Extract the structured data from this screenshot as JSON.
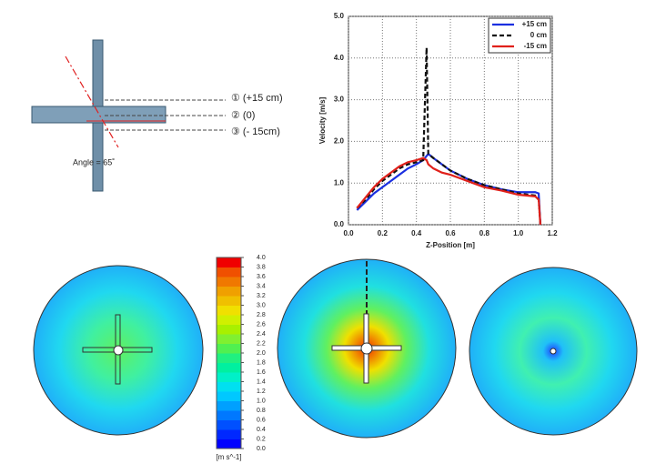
{
  "diagram": {
    "levels": [
      "① (+15 cm)",
      "② (0)",
      "③ (- 15cm)"
    ],
    "angle_label": "Angle = 65˚"
  },
  "chart_data": [
    {
      "type": "line",
      "xlabel": "Z-Position [m]",
      "ylabel": "Velocity [m/s]",
      "xlim": [
        0,
        1.2
      ],
      "ylim": [
        0,
        5
      ],
      "xticks": [
        {
          "value": 0,
          "label": "0.0"
        },
        0.2,
        0.4,
        0.6,
        0.8,
        {
          "value": 1,
          "label": "1.0"
        },
        1.2
      ],
      "yticks": [
        {
          "value": 0,
          "label": "0.0"
        },
        {
          "value": 1,
          "label": "1.0"
        },
        {
          "value": 2,
          "label": "2.0"
        },
        {
          "value": 3,
          "label": "3.0"
        },
        {
          "value": 4,
          "label": "4.0"
        },
        {
          "value": 5,
          "label": "5.0"
        }
      ],
      "grid": true,
      "legend": "upper right",
      "x": [
        0.05,
        0.1,
        0.15,
        0.2,
        0.25,
        0.3,
        0.35,
        0.4,
        0.44,
        0.46,
        0.47,
        0.5,
        0.55,
        0.6,
        0.7,
        0.8,
        0.9,
        1.0,
        1.1,
        1.12,
        1.13
      ],
      "series": [
        {
          "name": "+15 cm",
          "color": "#1a2fe0",
          "style": "solid",
          "values": [
            0.35,
            0.55,
            0.75,
            0.9,
            1.05,
            1.2,
            1.35,
            1.45,
            1.55,
            1.65,
            1.7,
            1.6,
            1.45,
            1.3,
            1.1,
            0.95,
            0.85,
            0.78,
            0.78,
            0.75,
            0.0
          ]
        },
        {
          "name": "0 cm",
          "color": "#111111",
          "style": "dashed",
          "values": [
            0.4,
            0.6,
            0.85,
            1.05,
            1.2,
            1.35,
            1.45,
            1.5,
            1.55,
            4.25,
            1.7,
            1.6,
            1.45,
            1.3,
            1.1,
            0.95,
            0.85,
            0.75,
            0.7,
            0.6,
            0.0
          ]
        },
        {
          "name": "-15 cm",
          "color": "#e0201a",
          "style": "solid",
          "values": [
            0.4,
            0.65,
            0.9,
            1.1,
            1.25,
            1.4,
            1.5,
            1.55,
            1.6,
            1.55,
            1.45,
            1.35,
            1.25,
            1.2,
            1.05,
            0.9,
            0.82,
            0.72,
            0.68,
            0.6,
            0.0
          ]
        }
      ]
    },
    {
      "type": "colorbar",
      "unit": "[m s^-1]",
      "lim": [
        0,
        4
      ],
      "ticks": [
        {
          "value": 0,
          "label": "0.0"
        },
        0.2,
        0.4,
        0.6,
        0.8,
        {
          "value": 1,
          "label": "1.0"
        },
        1.2,
        1.4,
        1.6,
        1.8,
        {
          "value": 2,
          "label": "2.0"
        },
        2.2,
        2.4,
        2.6,
        2.8,
        {
          "value": 3,
          "label": "3.0"
        },
        3.2,
        3.4,
        3.6,
        3.8,
        {
          "value": 4,
          "label": "4.0"
        }
      ],
      "colors": [
        "#0000ff",
        "#0028ff",
        "#0050ff",
        "#0078ff",
        "#00a0ff",
        "#00c8ff",
        "#00e0f0",
        "#00f0c8",
        "#00f0a0",
        "#20f080",
        "#50f050",
        "#80f030",
        "#a8f000",
        "#d0f000",
        "#f0e000",
        "#f0c000",
        "#f0a000",
        "#f07800",
        "#f05000",
        "#f00000"
      ]
    }
  ]
}
